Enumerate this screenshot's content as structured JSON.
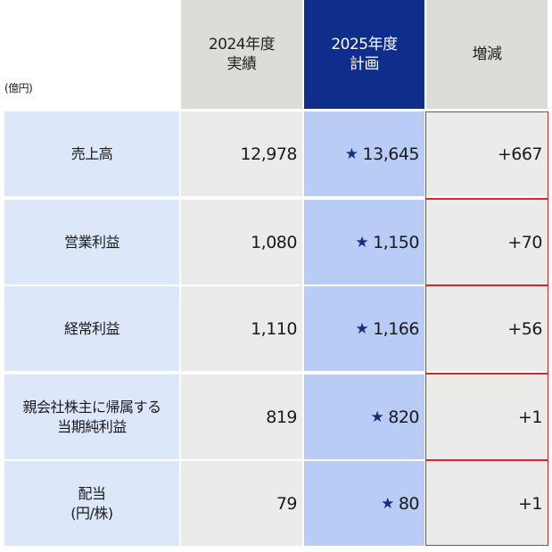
{
  "header": {
    "unit": "(億円)",
    "col_2024": [
      "2024年度",
      "実績"
    ],
    "col_2025": [
      "2025年度",
      "計画"
    ],
    "col_diff": [
      "増減"
    ]
  },
  "rows": [
    {
      "label": [
        "売上高"
      ],
      "v2024": "12,978",
      "v2025": "13,645",
      "diff": "+667"
    },
    {
      "label": [
        "営業利益"
      ],
      "v2024": "1,080",
      "v2025": "1,150",
      "diff": "+70"
    },
    {
      "label": [
        "経常利益"
      ],
      "v2024": "1,110",
      "v2025": "1,166",
      "diff": "+56"
    },
    {
      "label": [
        "親会社株主に帰属する",
        "当期純利益"
      ],
      "v2024": "819",
      "v2025": "820",
      "diff": "+1"
    },
    {
      "label": [
        "配当",
        "(円/株)"
      ],
      "v2024": "79",
      "v2025": "80",
      "diff": "+1"
    }
  ],
  "star_symbol": "★",
  "colors": {
    "plan_header": "#0f2d8a",
    "plan_cell": "#b8ccf5",
    "label_cell": "#dce7f9",
    "grey_cell": "#ebebea",
    "highlight_border": "#e0222b"
  }
}
